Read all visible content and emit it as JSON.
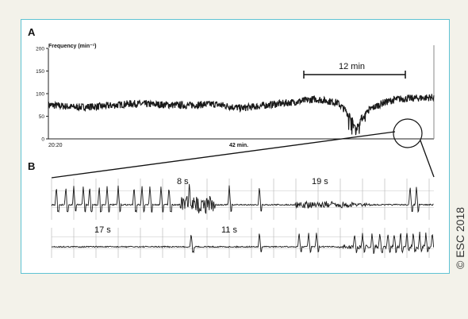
{
  "colors": {
    "border": "#5ec3d3",
    "trace": "#1a1a1a",
    "grid": "#9a9a9a",
    "background": "#f3f2ea"
  },
  "panel_a": {
    "label": "A",
    "ylabel": "Frequency (min⁻¹)",
    "y_ticks": [
      "200",
      "150",
      "100",
      "50",
      "0"
    ],
    "start_time": "20:20",
    "duration_label": "42 min.",
    "bracket_label": "12 min"
  },
  "panel_b": {
    "label": "B",
    "strip1_labels": [
      "8 s",
      "19 s"
    ],
    "strip2_labels": [
      "17 s",
      "11 s"
    ]
  },
  "copyright": "© ESC 2018",
  "chart_data": {
    "type": "line",
    "ylabel": "Frequency (min⁻¹)",
    "ylim": [
      0,
      200
    ],
    "yticks": [
      0,
      50,
      100,
      150,
      200
    ],
    "x_start_label": "20:20",
    "duration_min": 42,
    "series": [
      {
        "x": [
          0,
          3,
          6,
          9,
          12,
          15,
          18,
          21,
          24,
          27,
          29,
          30,
          31.5,
          32.5,
          33,
          33.5,
          34,
          35,
          36.5,
          38,
          40,
          42
        ],
        "values": [
          75,
          70,
          72,
          78,
          76,
          74,
          77,
          68,
          75,
          82,
          88,
          85,
          80,
          60,
          45,
          20,
          42,
          65,
          80,
          88,
          90,
          92
        ]
      }
    ],
    "annotations": [
      "12 min",
      "8 s",
      "19 s",
      "17 s",
      "11 s"
    ]
  }
}
